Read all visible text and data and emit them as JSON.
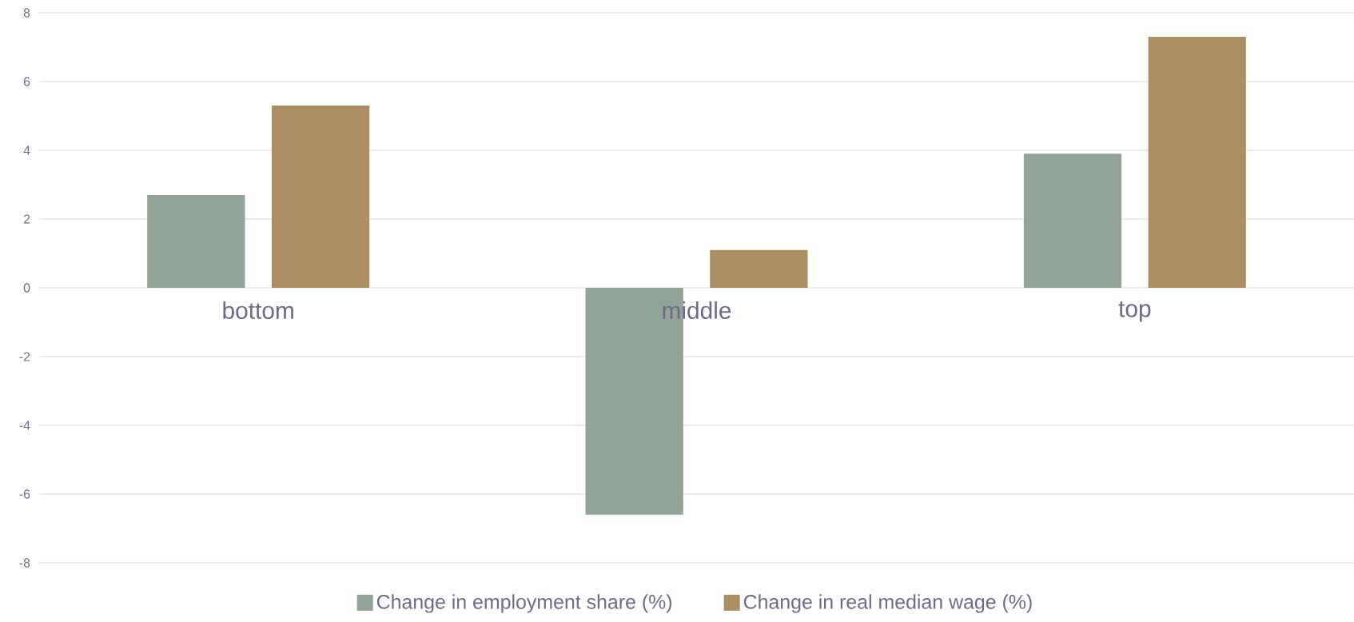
{
  "chart_data": {
    "type": "bar",
    "categories": [
      "bottom",
      "middle",
      "top"
    ],
    "series": [
      {
        "name": "Change in employment share (%)",
        "color": "#92a398",
        "values": [
          2.7,
          -6.6,
          3.9
        ]
      },
      {
        "name": "Change in real median wage (%)",
        "color": "#ad8e64",
        "values": [
          5.3,
          1.1,
          7.3
        ]
      }
    ],
    "ylim": [
      -8,
      8
    ],
    "yticks": [
      -8,
      -6,
      -4,
      -2,
      0,
      2,
      4,
      6,
      8
    ],
    "grid": "y",
    "legend": "bottom"
  }
}
